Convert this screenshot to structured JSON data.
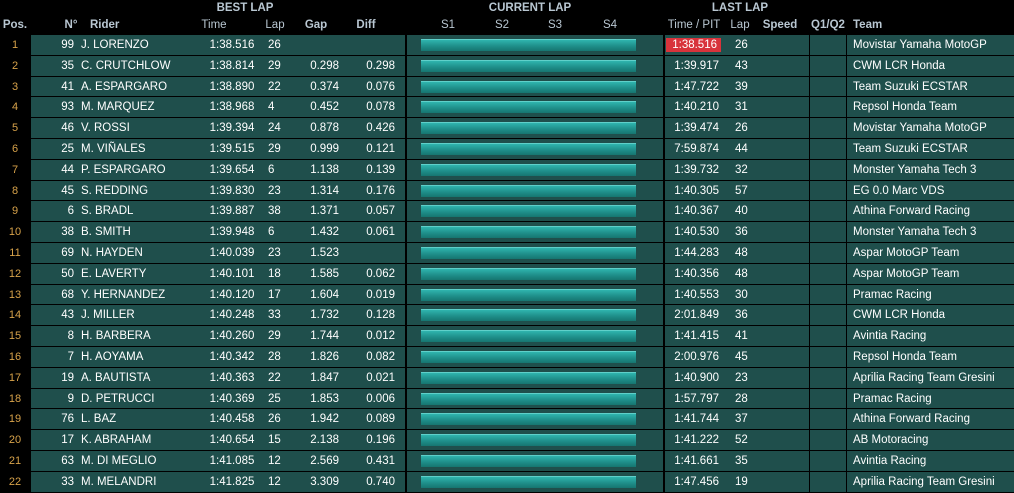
{
  "header": {
    "best_lap": "BEST LAP",
    "current_lap": "CURRENT LAP",
    "last_lap": "LAST LAP",
    "pos": "Pos.",
    "num": "N°",
    "rider": "Rider",
    "time": "Time",
    "lap": "Lap",
    "gap": "Gap",
    "diff": "Diff",
    "s1": "S1",
    "s2": "S2",
    "s3": "S3",
    "s4": "S4",
    "time_pit": "Time / PIT",
    "lap2": "Lap",
    "speed": "Speed",
    "q1q2": "Q1/Q2",
    "team": "Team"
  },
  "colors": {
    "row_bg": "#1f4f4c",
    "bar": "#2fb4ae",
    "highlight": "#d8333b",
    "position": "#d7a24a"
  },
  "rows": [
    {
      "pos": "1",
      "num": "99",
      "rider": "J. LORENZO",
      "time": "1:38.516",
      "lap": "26",
      "gap": "",
      "diff": "",
      "last_time": "1:38.516",
      "last_lap": "26",
      "team": "Movistar Yamaha MotoGP",
      "highlight": true
    },
    {
      "pos": "2",
      "num": "35",
      "rider": "C. CRUTCHLOW",
      "time": "1:38.814",
      "lap": "29",
      "gap": "0.298",
      "diff": "0.298",
      "last_time": "1:39.917",
      "last_lap": "43",
      "team": "CWM LCR Honda"
    },
    {
      "pos": "3",
      "num": "41",
      "rider": "A. ESPARGARO",
      "time": "1:38.890",
      "lap": "22",
      "gap": "0.374",
      "diff": "0.076",
      "last_time": "1:47.722",
      "last_lap": "39",
      "team": "Team Suzuki ECSTAR"
    },
    {
      "pos": "4",
      "num": "93",
      "rider": "M. MARQUEZ",
      "time": "1:38.968",
      "lap": "4",
      "gap": "0.452",
      "diff": "0.078",
      "last_time": "1:40.210",
      "last_lap": "31",
      "team": "Repsol Honda Team"
    },
    {
      "pos": "5",
      "num": "46",
      "rider": "V. ROSSI",
      "time": "1:39.394",
      "lap": "24",
      "gap": "0.878",
      "diff": "0.426",
      "last_time": "1:39.474",
      "last_lap": "26",
      "team": "Movistar Yamaha MotoGP"
    },
    {
      "pos": "6",
      "num": "25",
      "rider": "M. VIÑALES",
      "time": "1:39.515",
      "lap": "29",
      "gap": "0.999",
      "diff": "0.121",
      "last_time": "7:59.874",
      "last_lap": "44",
      "team": "Team Suzuki ECSTAR"
    },
    {
      "pos": "7",
      "num": "44",
      "rider": "P. ESPARGARO",
      "time": "1:39.654",
      "lap": "6",
      "gap": "1.138",
      "diff": "0.139",
      "last_time": "1:39.732",
      "last_lap": "32",
      "team": "Monster Yamaha Tech 3"
    },
    {
      "pos": "8",
      "num": "45",
      "rider": "S. REDDING",
      "time": "1:39.830",
      "lap": "23",
      "gap": "1.314",
      "diff": "0.176",
      "last_time": "1:40.305",
      "last_lap": "57",
      "team": "EG 0.0 Marc VDS"
    },
    {
      "pos": "9",
      "num": "6",
      "rider": "S. BRADL",
      "time": "1:39.887",
      "lap": "38",
      "gap": "1.371",
      "diff": "0.057",
      "last_time": "1:40.367",
      "last_lap": "40",
      "team": "Athina Forward Racing"
    },
    {
      "pos": "10",
      "num": "38",
      "rider": "B. SMITH",
      "time": "1:39.948",
      "lap": "6",
      "gap": "1.432",
      "diff": "0.061",
      "last_time": "1:40.530",
      "last_lap": "36",
      "team": "Monster Yamaha Tech 3"
    },
    {
      "pos": "11",
      "num": "69",
      "rider": "N. HAYDEN",
      "time": "1:40.039",
      "lap": "23",
      "gap": "1.523",
      "diff": "",
      "last_time": "1:44.283",
      "last_lap": "48",
      "team": "Aspar MotoGP Team"
    },
    {
      "pos": "12",
      "num": "50",
      "rider": "E. LAVERTY",
      "time": "1:40.101",
      "lap": "18",
      "gap": "1.585",
      "diff": "0.062",
      "last_time": "1:40.356",
      "last_lap": "48",
      "team": "Aspar MotoGP Team"
    },
    {
      "pos": "13",
      "num": "68",
      "rider": "Y. HERNANDEZ",
      "time": "1:40.120",
      "lap": "17",
      "gap": "1.604",
      "diff": "0.019",
      "last_time": "1:40.553",
      "last_lap": "30",
      "team": "Pramac Racing"
    },
    {
      "pos": "14",
      "num": "43",
      "rider": "J. MILLER",
      "time": "1:40.248",
      "lap": "33",
      "gap": "1.732",
      "diff": "0.128",
      "last_time": "2:01.849",
      "last_lap": "36",
      "team": "CWM LCR Honda"
    },
    {
      "pos": "15",
      "num": "8",
      "rider": "H. BARBERA",
      "time": "1:40.260",
      "lap": "29",
      "gap": "1.744",
      "diff": "0.012",
      "last_time": "1:41.415",
      "last_lap": "41",
      "team": "Avintia Racing"
    },
    {
      "pos": "16",
      "num": "7",
      "rider": "H. AOYAMA",
      "time": "1:40.342",
      "lap": "28",
      "gap": "1.826",
      "diff": "0.082",
      "last_time": "2:00.976",
      "last_lap": "45",
      "team": "Repsol Honda Team"
    },
    {
      "pos": "17",
      "num": "19",
      "rider": "A. BAUTISTA",
      "time": "1:40.363",
      "lap": "22",
      "gap": "1.847",
      "diff": "0.021",
      "last_time": "1:40.900",
      "last_lap": "23",
      "team": "Aprilia Racing Team Gresini"
    },
    {
      "pos": "18",
      "num": "9",
      "rider": "D. PETRUCCI",
      "time": "1:40.369",
      "lap": "25",
      "gap": "1.853",
      "diff": "0.006",
      "last_time": "1:57.797",
      "last_lap": "28",
      "team": "Pramac Racing"
    },
    {
      "pos": "19",
      "num": "76",
      "rider": "L. BAZ",
      "time": "1:40.458",
      "lap": "26",
      "gap": "1.942",
      "diff": "0.089",
      "last_time": "1:41.744",
      "last_lap": "37",
      "team": "Athina Forward Racing"
    },
    {
      "pos": "20",
      "num": "17",
      "rider": "K. ABRAHAM",
      "time": "1:40.654",
      "lap": "15",
      "gap": "2.138",
      "diff": "0.196",
      "last_time": "1:41.222",
      "last_lap": "52",
      "team": "AB Motoracing"
    },
    {
      "pos": "21",
      "num": "63",
      "rider": "M. DI MEGLIO",
      "time": "1:41.085",
      "lap": "12",
      "gap": "2.569",
      "diff": "0.431",
      "last_time": "1:41.661",
      "last_lap": "35",
      "team": "Avintia Racing"
    },
    {
      "pos": "22",
      "num": "33",
      "rider": "M. MELANDRI",
      "time": "1:41.825",
      "lap": "12",
      "gap": "3.309",
      "diff": "0.740",
      "last_time": "1:47.456",
      "last_lap": "19",
      "team": "Aprilia Racing Team Gresini"
    }
  ]
}
